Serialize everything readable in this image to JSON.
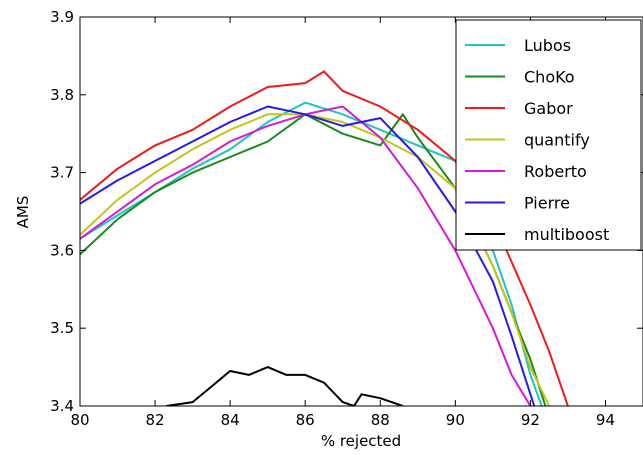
{
  "chart_data": {
    "type": "line",
    "title": "",
    "xlabel": "% rejected",
    "ylabel": "AMS",
    "xlim": [
      80,
      95
    ],
    "ylim": [
      3.4,
      3.9
    ],
    "xticks": [
      80,
      82,
      84,
      86,
      88,
      90,
      92,
      94
    ],
    "xtick_labels": [
      "80",
      "82",
      "84",
      "86",
      "88",
      "90",
      "92",
      "94"
    ],
    "yticks": [
      3.4,
      3.5,
      3.6,
      3.7,
      3.8,
      3.9
    ],
    "ytick_labels": [
      "3.4",
      "3.5",
      "3.6",
      "3.7",
      "3.8",
      "3.9"
    ],
    "grid": false,
    "legend": "top-right",
    "series": [
      {
        "name": "Lubos",
        "color": "#1fc4c4",
        "x": [
          80,
          81,
          82,
          83,
          84,
          85,
          86,
          87,
          88,
          89,
          90,
          91,
          91.5,
          92,
          92.3
        ],
        "y": [
          3.615,
          3.645,
          3.675,
          3.705,
          3.73,
          3.765,
          3.79,
          3.775,
          3.755,
          3.735,
          3.715,
          3.6,
          3.53,
          3.44,
          3.4
        ]
      },
      {
        "name": "ChoKo",
        "color": "#1a8a1a",
        "x": [
          80,
          81,
          82,
          83,
          84,
          85,
          86,
          87,
          88,
          88.6,
          89,
          90,
          91,
          91.5,
          92,
          92.4
        ],
        "y": [
          3.595,
          3.64,
          3.675,
          3.7,
          3.72,
          3.74,
          3.775,
          3.75,
          3.735,
          3.775,
          3.745,
          3.68,
          3.58,
          3.52,
          3.46,
          3.4
        ]
      },
      {
        "name": "Gabor",
        "color": "#f01a1a",
        "x": [
          80,
          81,
          82,
          83,
          84,
          85,
          86,
          86.5,
          87,
          88,
          89,
          90,
          91,
          92,
          92.5,
          93
        ],
        "y": [
          3.665,
          3.705,
          3.735,
          3.755,
          3.785,
          3.81,
          3.815,
          3.83,
          3.805,
          3.785,
          3.755,
          3.715,
          3.64,
          3.53,
          3.47,
          3.4
        ]
      },
      {
        "name": "quantify",
        "color": "#c4c41a",
        "x": [
          80,
          81,
          82,
          83,
          84,
          85,
          86,
          87,
          88,
          89,
          90,
          91,
          91.5,
          92,
          92.5
        ],
        "y": [
          3.62,
          3.665,
          3.7,
          3.73,
          3.755,
          3.775,
          3.775,
          3.765,
          3.745,
          3.72,
          3.68,
          3.58,
          3.52,
          3.45,
          3.4
        ]
      },
      {
        "name": "Roberto",
        "color": "#d41ad4",
        "x": [
          80,
          81,
          82,
          83,
          84,
          85,
          86,
          87,
          88,
          89,
          90,
          91,
          91.5,
          92
        ],
        "y": [
          3.615,
          3.65,
          3.685,
          3.71,
          3.74,
          3.76,
          3.775,
          3.785,
          3.745,
          3.68,
          3.6,
          3.5,
          3.44,
          3.4
        ]
      },
      {
        "name": "Pierre",
        "color": "#2a1ae8",
        "x": [
          80,
          81,
          82,
          83,
          84,
          85,
          86,
          87,
          88,
          89,
          90,
          91,
          91.5,
          92.1
        ],
        "y": [
          3.66,
          3.69,
          3.715,
          3.74,
          3.765,
          3.785,
          3.775,
          3.76,
          3.77,
          3.72,
          3.65,
          3.56,
          3.49,
          3.4
        ]
      },
      {
        "name": "multiboost",
        "color": "#000000",
        "x": [
          82.3,
          83,
          83.5,
          84,
          84.5,
          85,
          85.5,
          86,
          86.5,
          87,
          87.3,
          87.5,
          88,
          88.6
        ],
        "y": [
          3.4,
          3.405,
          3.425,
          3.445,
          3.44,
          3.45,
          3.44,
          3.44,
          3.43,
          3.405,
          3.4,
          3.415,
          3.41,
          3.4
        ]
      }
    ]
  }
}
